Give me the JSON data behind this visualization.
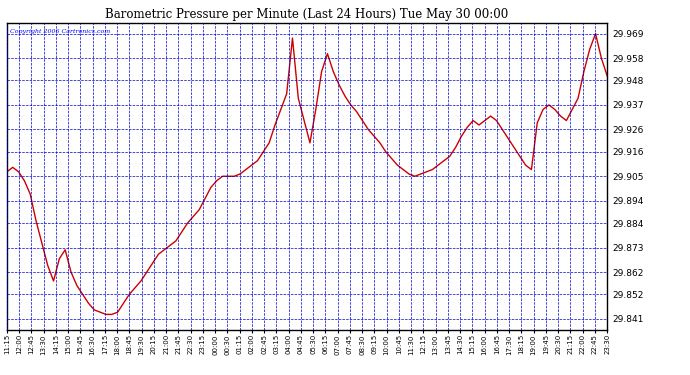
{
  "title": "Barometric Pressure per Minute (Last 24 Hours) Tue May 30 00:00",
  "copyright": "Copyright 2006 Cartronics.com",
  "background_color": "#ffffff",
  "plot_background": "#ffffff",
  "grid_color": "#0000cc",
  "line_color": "#cc0000",
  "line_width": 1.0,
  "yticks": [
    29.841,
    29.852,
    29.862,
    29.873,
    29.884,
    29.894,
    29.905,
    29.916,
    29.926,
    29.937,
    29.948,
    29.958,
    29.969
  ],
  "ylim": [
    29.836,
    29.974
  ],
  "x_labels": [
    "11:15",
    "12:00",
    "12:45",
    "13:30",
    "14:15",
    "15:00",
    "15:45",
    "16:30",
    "17:15",
    "18:00",
    "18:45",
    "19:30",
    "20:15",
    "21:00",
    "21:45",
    "22:30",
    "23:15",
    "00:00",
    "00:30",
    "01:15",
    "02:00",
    "02:45",
    "03:15",
    "04:00",
    "04:45",
    "05:30",
    "06:15",
    "07:00",
    "07:45",
    "08:30",
    "09:15",
    "10:00",
    "10:45",
    "11:30",
    "12:15",
    "13:00",
    "13:45",
    "14:30",
    "15:15",
    "16:00",
    "16:45",
    "17:30",
    "18:15",
    "19:00",
    "19:45",
    "20:30",
    "21:15",
    "22:00",
    "22:45",
    "23:30"
  ],
  "pressure_data": [
    29.907,
    29.909,
    29.907,
    29.903,
    29.897,
    29.885,
    29.875,
    29.865,
    29.858,
    29.868,
    29.872,
    29.862,
    29.856,
    29.852,
    29.848,
    29.845,
    29.844,
    29.843,
    29.843,
    29.844,
    29.848,
    29.852,
    29.855,
    29.858,
    29.862,
    29.866,
    29.87,
    29.872,
    29.874,
    29.876,
    29.88,
    29.884,
    29.887,
    29.89,
    29.895,
    29.9,
    29.903,
    29.905,
    29.905,
    29.905,
    29.906,
    29.908,
    29.91,
    29.912,
    29.916,
    29.92,
    29.928,
    29.935,
    29.942,
    29.967,
    29.94,
    29.93,
    29.92,
    29.935,
    29.952,
    29.96,
    29.952,
    29.946,
    29.941,
    29.937,
    29.934,
    29.93,
    29.926,
    29.923,
    29.92,
    29.916,
    29.913,
    29.91,
    29.908,
    29.906,
    29.905,
    29.906,
    29.907,
    29.908,
    29.91,
    29.912,
    29.914,
    29.918,
    29.923,
    29.927,
    29.93,
    29.928,
    29.93,
    29.932,
    29.93,
    29.926,
    29.922,
    29.918,
    29.914,
    29.91,
    29.908,
    29.929,
    29.935,
    29.937,
    29.935,
    29.932,
    29.93,
    29.935,
    29.94,
    29.952,
    29.962,
    29.969,
    29.958,
    29.95
  ]
}
